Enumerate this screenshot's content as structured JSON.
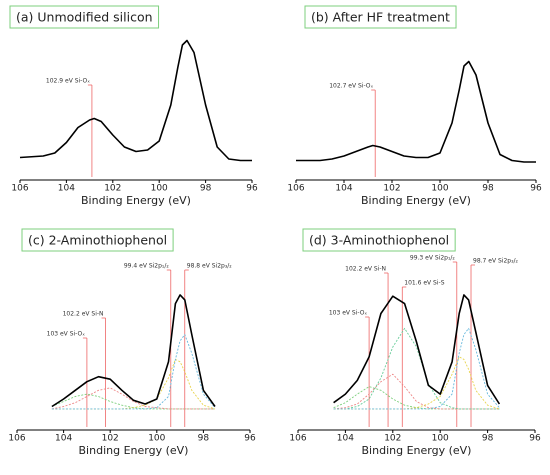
{
  "chart_data": [
    {
      "type": "line",
      "title": "(a) Unmodified silicon",
      "x_label": "Binding Energy (eV)",
      "xlim": [
        106,
        96
      ],
      "xticks": [
        106,
        104,
        102,
        100,
        98,
        96
      ],
      "ylim": [
        0,
        100
      ],
      "x": [
        106,
        105,
        104.5,
        104,
        103.5,
        103,
        102.8,
        102.5,
        102,
        101.5,
        101,
        100.5,
        100,
        99.5,
        99.2,
        99,
        98.8,
        98.5,
        98,
        97.5,
        97,
        96.5,
        96
      ],
      "series": [
        {
          "color": "#000000",
          "values": [
            15,
            16,
            18,
            25,
            35,
            40,
            41,
            39,
            30,
            22,
            19,
            20,
            26,
            50,
            75,
            90,
            93,
            85,
            50,
            22,
            14,
            13,
            13
          ]
        }
      ],
      "annotations": [
        {
          "text": "102.9 eV Si-Oₓ",
          "x": 102.9
        }
      ]
    },
    {
      "type": "line",
      "title": "(b) After HF treatment",
      "x_label": "Binding Energy (eV)",
      "xlim": [
        106,
        96
      ],
      "xticks": [
        106,
        104,
        102,
        100,
        98,
        96
      ],
      "ylim": [
        0,
        100
      ],
      "x": [
        106,
        105,
        104.5,
        104,
        103.5,
        103,
        102.8,
        102.5,
        102,
        101.5,
        101,
        100.5,
        100,
        99.5,
        99.2,
        99,
        98.8,
        98.5,
        98,
        97.5,
        97,
        96.5,
        96
      ],
      "series": [
        {
          "color": "#000000",
          "values": [
            13,
            13,
            14,
            16,
            19,
            22,
            23,
            22,
            19,
            16,
            15,
            15,
            18,
            38,
            60,
            76,
            79,
            70,
            38,
            17,
            13,
            12,
            12
          ]
        }
      ],
      "annotations": [
        {
          "text": "102.7 eV Si-Oₓ",
          "x": 102.7
        }
      ]
    },
    {
      "type": "line",
      "title": "(c) 2-Aminothiophenol",
      "x_label": "Binding Energy (eV)",
      "xlim": [
        106,
        96
      ],
      "xticks": [
        106,
        104,
        102,
        100,
        98,
        96
      ],
      "ylim": [
        -17,
        100
      ],
      "x": [
        104.5,
        104,
        103.5,
        103,
        102.5,
        102,
        101.5,
        101,
        100.5,
        100,
        99.5,
        99.2,
        99,
        98.8,
        98.5,
        98,
        97.5
      ],
      "series": [
        {
          "color": "#7ccf7c",
          "values": [
            2,
            6,
            10,
            12,
            10,
            6,
            3,
            1,
            0,
            0,
            0,
            0,
            0,
            0,
            0,
            0,
            0
          ]
        },
        {
          "color": "#ee8888",
          "values": [
            0,
            2,
            5,
            10,
            15,
            17,
            12,
            6,
            2,
            1,
            0,
            0,
            0,
            0,
            0,
            0,
            0
          ]
        },
        {
          "color": "#e8d44d",
          "values": [
            0,
            0,
            0,
            0,
            0,
            0,
            0,
            1,
            3,
            8,
            25,
            40,
            38,
            30,
            15,
            3,
            0
          ]
        },
        {
          "color": "#66b8dd",
          "values": [
            0,
            0,
            0,
            0,
            0,
            0,
            0,
            0,
            0,
            1,
            10,
            40,
            55,
            60,
            45,
            12,
            1
          ]
        },
        {
          "color": "#000000",
          "values": [
            2,
            8,
            15,
            22,
            26,
            24,
            15,
            7,
            4,
            8,
            38,
            85,
            92,
            88,
            60,
            15,
            2
          ]
        }
      ],
      "annotations": [
        {
          "text": "103 eV Si-Oₓ",
          "x": 103
        },
        {
          "text": "102.2 eV Si-N",
          "x": 102.2
        },
        {
          "text": "99.4 eV Si2p₁/₂",
          "x": 99.4
        },
        {
          "text": "98.8 eV Si2p₃/₂",
          "x": 98.8
        }
      ]
    },
    {
      "type": "line",
      "title": "(d) 3-Aminothiophenol",
      "x_label": "Binding Energy (eV)",
      "xlim": [
        106,
        96
      ],
      "xticks": [
        106,
        104,
        102,
        100,
        98,
        96
      ],
      "ylim": [
        -17,
        100
      ],
      "x": [
        104.5,
        104,
        103.5,
        103,
        102.5,
        102,
        101.5,
        101,
        100.5,
        100,
        99.5,
        99.2,
        99,
        98.8,
        98.5,
        98,
        97.5
      ],
      "series": [
        {
          "color": "#7ccf7c",
          "values": [
            1,
            5,
            12,
            18,
            15,
            8,
            3,
            1,
            0,
            0,
            0,
            0,
            0,
            0,
            0,
            0,
            0
          ]
        },
        {
          "color": "#ee8888",
          "values": [
            0,
            1,
            4,
            12,
            22,
            28,
            18,
            6,
            1,
            0,
            0,
            0,
            0,
            0,
            0,
            0,
            0
          ]
        },
        {
          "color": "#66cc99",
          "values": [
            0,
            0,
            2,
            8,
            25,
            50,
            65,
            50,
            20,
            5,
            1,
            0,
            0,
            0,
            0,
            0,
            0
          ]
        },
        {
          "color": "#e8d44d",
          "values": [
            0,
            0,
            0,
            0,
            0,
            0,
            0,
            1,
            4,
            10,
            28,
            42,
            40,
            32,
            15,
            3,
            0
          ]
        },
        {
          "color": "#66b8dd",
          "values": [
            0,
            0,
            0,
            0,
            0,
            0,
            0,
            0,
            0,
            2,
            12,
            45,
            60,
            65,
            48,
            12,
            1
          ]
        },
        {
          "color": "#000000",
          "values": [
            5,
            12,
            23,
            42,
            77,
            91,
            85,
            54,
            19,
            12,
            38,
            77,
            92,
            88,
            62,
            19,
            4
          ]
        }
      ],
      "annotations": [
        {
          "text": "103 eV Si-Oₓ",
          "x": 103
        },
        {
          "text": "102.2 eV Si-N",
          "x": 102.2
        },
        {
          "text": "101.6 eV Si-S",
          "x": 101.6
        },
        {
          "text": "99.3 eV Si2p₁/₂",
          "x": 99.3
        },
        {
          "text": "98.7 eV Si2p₃/₂",
          "x": 98.7
        }
      ]
    }
  ]
}
